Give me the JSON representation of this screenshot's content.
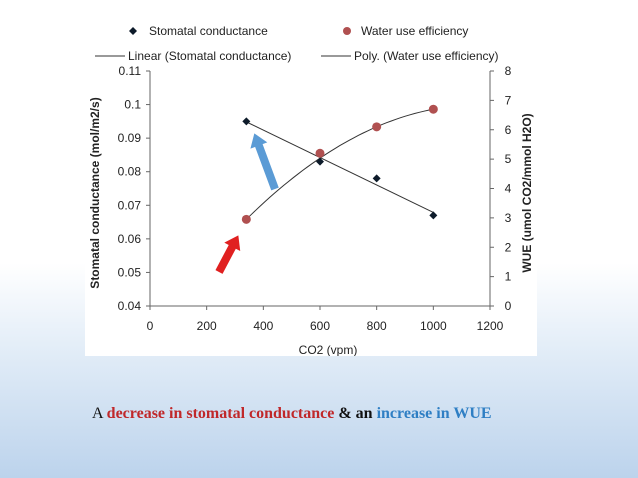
{
  "chart_data": {
    "type": "scatter",
    "x_axis": {
      "label": "CO2 (vpm)",
      "min": 0,
      "max": 1200,
      "ticks": [
        "0",
        "200",
        "400",
        "600",
        "800",
        "1000",
        "1200"
      ]
    },
    "y_left": {
      "label": "Stomatal conductance (mol/m2/s)",
      "min": 0.04,
      "max": 0.11,
      "ticks": [
        "0.04",
        "0.05",
        "0.06",
        "0.07",
        "0.08",
        "0.09",
        "0.1",
        "0.11"
      ]
    },
    "y_right": {
      "label": "WUE (umol CO2/mmol H2O)",
      "min": 0,
      "max": 8,
      "ticks": [
        "0",
        "1",
        "2",
        "3",
        "4",
        "5",
        "6",
        "7",
        "8"
      ]
    },
    "series": [
      {
        "name": "Stomatal conductance",
        "axis": "left",
        "marker": "diamond",
        "color": "#0d1b2a",
        "x": [
          340,
          600,
          800,
          1000
        ],
        "y": [
          0.095,
          0.083,
          0.078,
          0.067
        ]
      },
      {
        "name": "Water use efficiency",
        "axis": "right",
        "marker": "circle",
        "color": "#b05050",
        "x": [
          340,
          600,
          800,
          1000
        ],
        "y": [
          2.95,
          5.2,
          6.1,
          6.7
        ]
      }
    ],
    "trendlines": [
      {
        "name": "Linear (Stomatal conductance)",
        "of": "Stomatal conductance",
        "kind": "linear"
      },
      {
        "name": "Poly. (Water use efficiency)",
        "of": "Water use efficiency",
        "kind": "polynomial"
      }
    ],
    "legend": "top",
    "grid": false,
    "annotations": [
      {
        "kind": "arrow",
        "color": "#e02020",
        "points_to": "Water use efficiency"
      },
      {
        "kind": "arrow",
        "color": "#5b9bd5",
        "points_to": "Stomatal conductance"
      }
    ]
  },
  "caption": {
    "part1": "A ",
    "part2": "decrease in stomatal conductance",
    "part3": " & ",
    "part4": "an",
    "part5": " ",
    "part6": "increase in WUE"
  }
}
